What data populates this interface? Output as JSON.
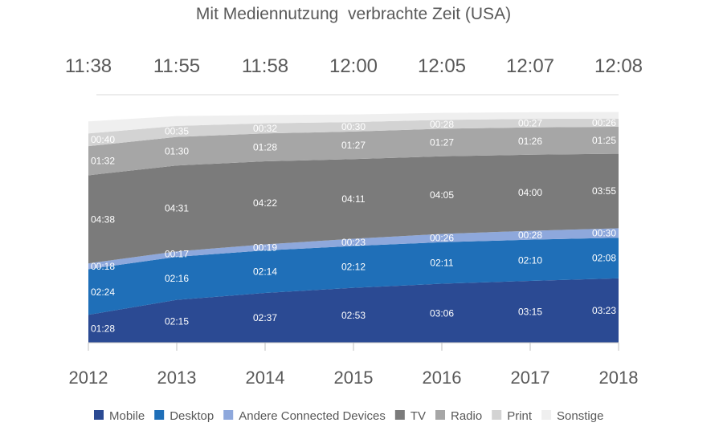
{
  "chart_data": {
    "type": "area",
    "stacked": true,
    "title": "Mit Mediennutzung  verbrachte Zeit (USA)",
    "categories": [
      "2012",
      "2013",
      "2014",
      "2015",
      "2016",
      "2017",
      "2018"
    ],
    "totals": [
      "11:38",
      "11:55",
      "11:58",
      "12:00",
      "12:05",
      "12:07",
      "12:08"
    ],
    "legend_position": "bottom",
    "grid": false,
    "series": [
      {
        "name": "Mobile",
        "color": "#2b4a93",
        "values": [
          "01:28",
          "02:15",
          "02:37",
          "02:53",
          "03:06",
          "03:15",
          "03:23"
        ]
      },
      {
        "name": "Desktop",
        "color": "#1f6fb8",
        "values": [
          "02:24",
          "02:16",
          "02:14",
          "02:12",
          "02:11",
          "02:10",
          "02:08"
        ]
      },
      {
        "name": "Andere Connected Devices",
        "color": "#8ea8dc",
        "values": [
          "00:18",
          "00:17",
          "00:19",
          "00:23",
          "00:26",
          "00:28",
          "00:30"
        ]
      },
      {
        "name": "TV",
        "color": "#7b7b7b",
        "values": [
          "04:38",
          "04:31",
          "04:22",
          "04:11",
          "04:05",
          "04:00",
          "03:55"
        ]
      },
      {
        "name": "Radio",
        "color": "#a6a6a6",
        "values": [
          "01:32",
          "01:30",
          "01:28",
          "01:27",
          "01:27",
          "01:26",
          "01:25"
        ]
      },
      {
        "name": "Print",
        "color": "#d3d3d3",
        "values": [
          "00:40",
          "00:35",
          "00:32",
          "00:30",
          "00:28",
          "00:27",
          "00:26"
        ]
      },
      {
        "name": "Sonstige",
        "color": "#efefef",
        "values_minutes": [
          38,
          31,
          26,
          24,
          22,
          21,
          21
        ],
        "labeled": false
      }
    ]
  }
}
